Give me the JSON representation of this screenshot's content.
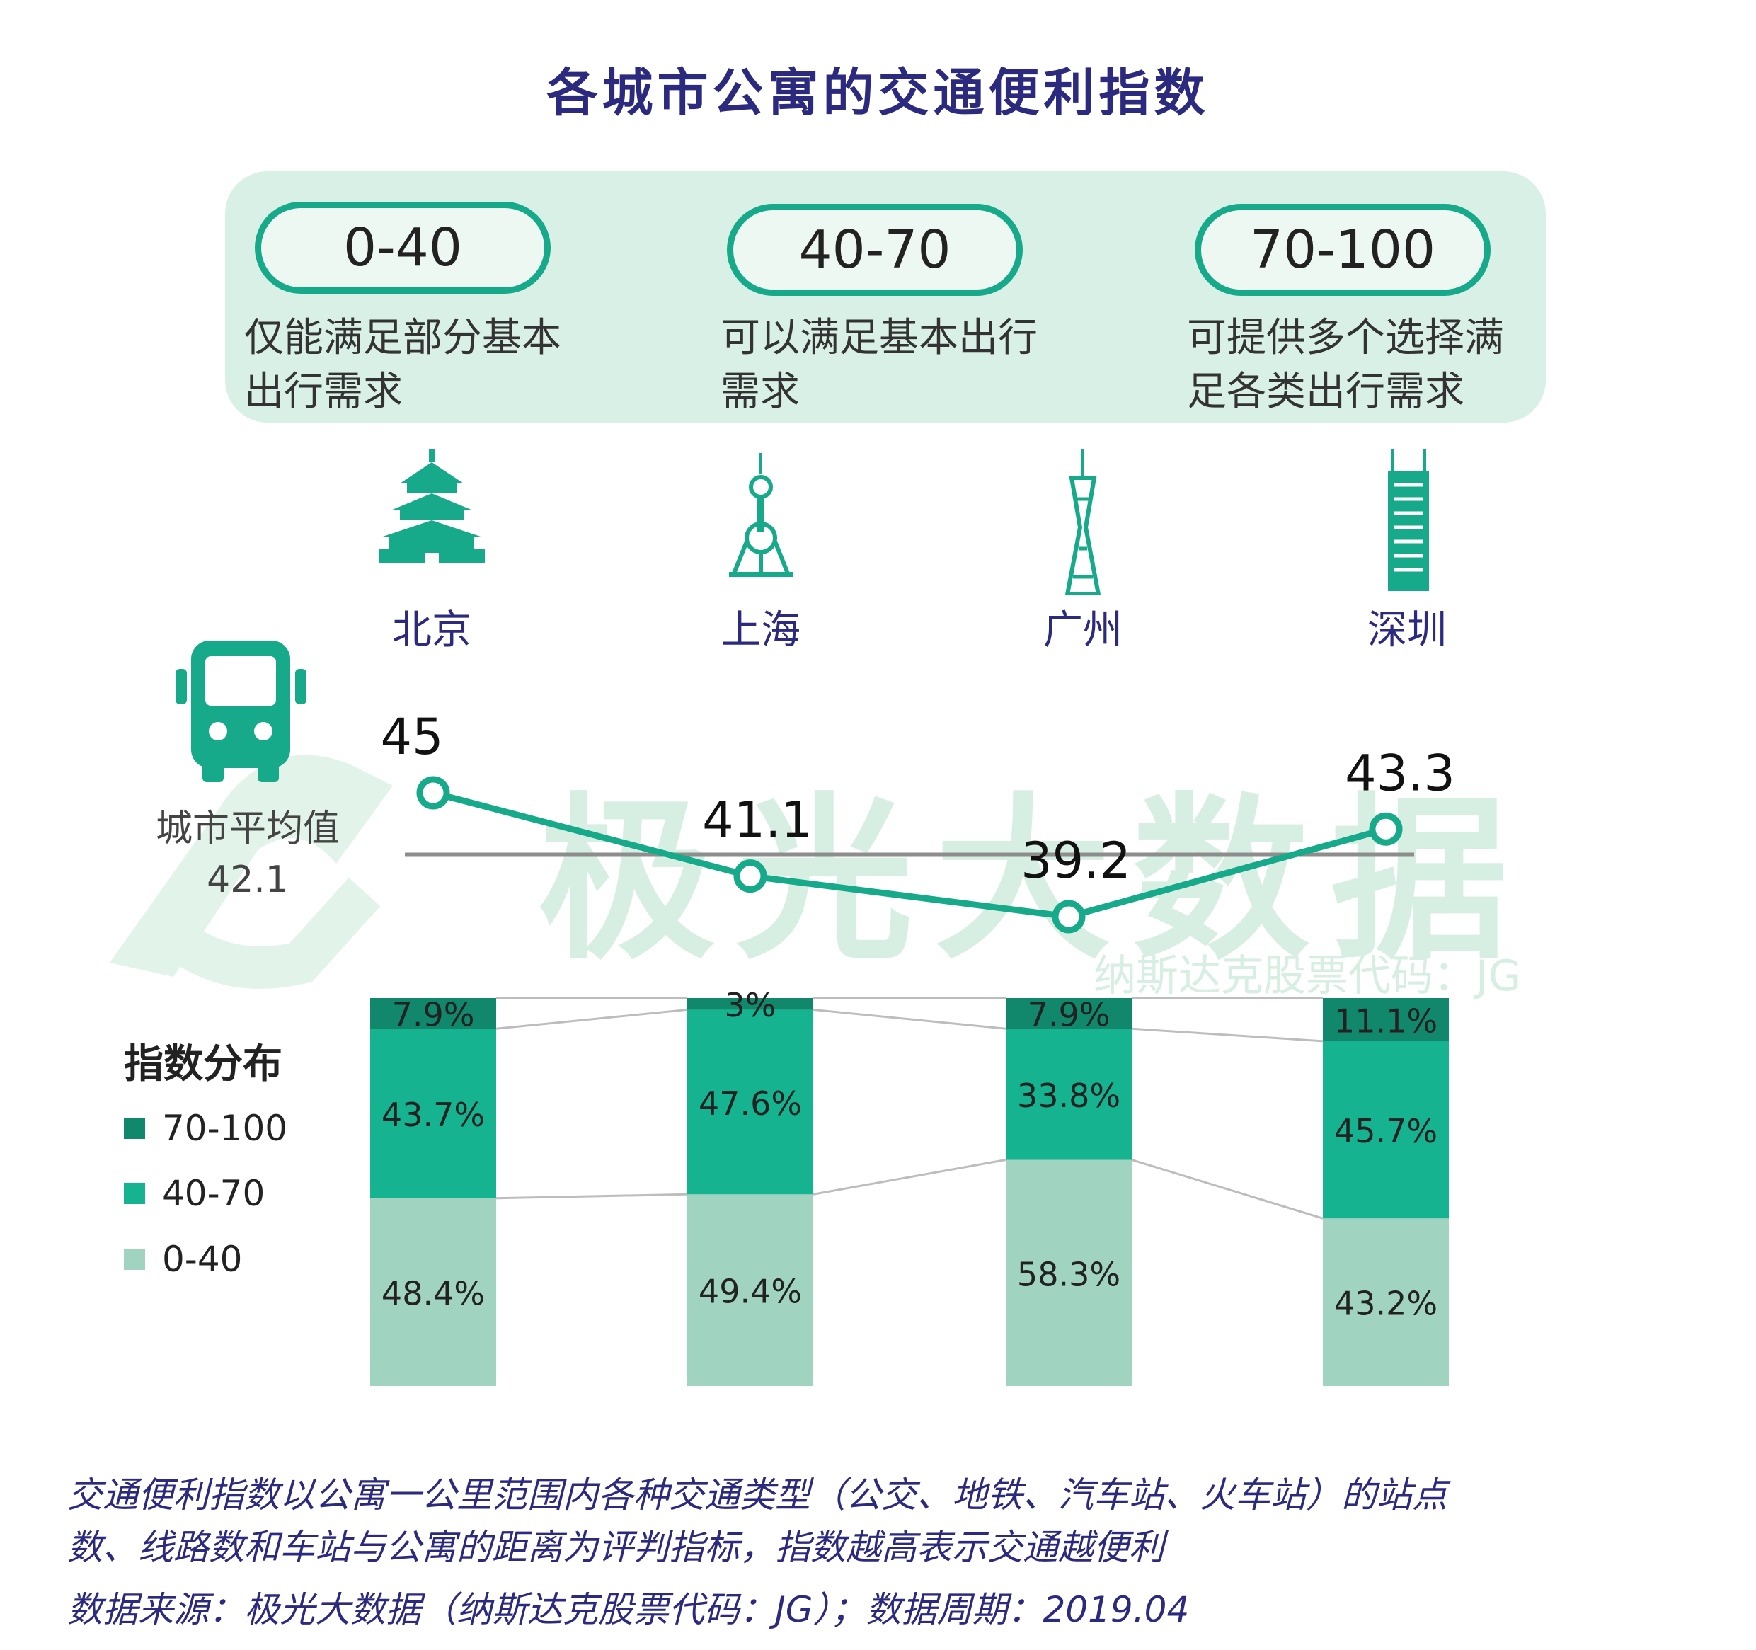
{
  "title": "各城市公寓的交通便利指数",
  "ranges": [
    {
      "label": "0-40",
      "desc": [
        "仅能满足部分基本",
        "出行需求"
      ]
    },
    {
      "label": "40-70",
      "desc": [
        "可以满足基本出行",
        "需求"
      ]
    },
    {
      "label": "70-100",
      "desc": [
        "可提供多个选择满",
        "足各类出行需求"
      ]
    }
  ],
  "watermark": {
    "main": "极光大数据",
    "sub": "纳斯达克股票代码：JG"
  },
  "average": {
    "label": "城市平均值",
    "value": "42.1"
  },
  "distribution_title": "指数分布",
  "colors": {
    "high": "#11876b",
    "mid": "#16b391",
    "low": "#a0d3c0",
    "line": "#16a98a",
    "avg_line": "#8d8d8d"
  },
  "chart_data": [
    {
      "type": "line",
      "categories": [
        "北京",
        "上海",
        "广州",
        "深圳"
      ],
      "values": [
        45,
        41.1,
        39.2,
        43.3
      ],
      "value_labels": [
        "45",
        "41.1",
        "39.2",
        "43.3"
      ],
      "reference_line": {
        "label": "城市平均值",
        "value": 42.1
      }
    },
    {
      "type": "bar",
      "stacked": true,
      "categories": [
        "北京",
        "上海",
        "广州",
        "深圳"
      ],
      "series": [
        {
          "name": "0-40",
          "values": [
            48.4,
            49.4,
            58.3,
            43.2
          ],
          "labels": [
            "48.4%",
            "49.4%",
            "58.3%",
            "43.2%"
          ]
        },
        {
          "name": "40-70",
          "values": [
            43.7,
            47.6,
            33.8,
            45.7
          ],
          "labels": [
            "43.7%",
            "47.6%",
            "33.8%",
            "45.7%"
          ]
        },
        {
          "name": "70-100",
          "values": [
            7.9,
            3,
            7.9,
            11.1
          ],
          "labels": [
            "7.9%",
            "3%",
            "7.9%",
            "11.1%"
          ]
        }
      ],
      "legend": [
        "70-100",
        "40-70",
        "0-40"
      ]
    }
  ],
  "footnote": {
    "line1": "交通便利指数以公寓一公里范围内各种交通类型（公交、地铁、汽车站、火车站）的站点",
    "line2": "数、线路数和车站与公寓的距离为评判指标，指数越高表示交通越便利",
    "source": "数据来源：极光大数据（纳斯达克股票代码：JG）；数据周期：2019.04"
  }
}
